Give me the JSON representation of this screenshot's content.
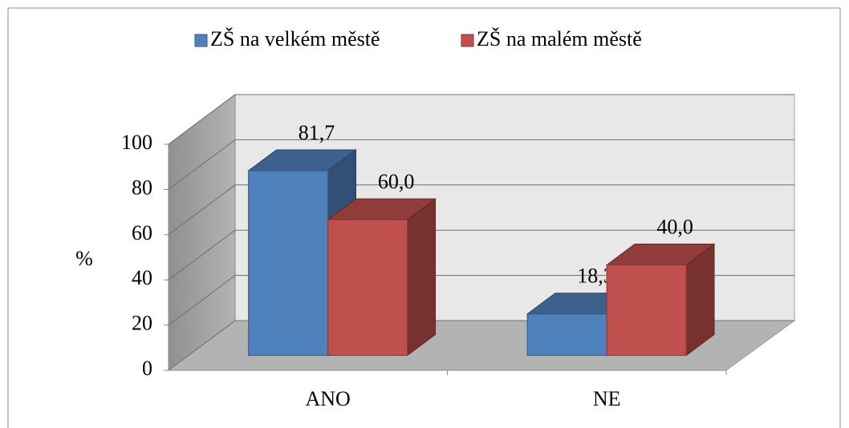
{
  "chart_data": {
    "type": "bar3d",
    "ylabel": "%",
    "categories": [
      "ANO",
      "NE"
    ],
    "series": [
      {
        "name": "ZŠ na velkém městě",
        "color": "#4f81bd",
        "values": [
          81.7,
          18.3
        ],
        "value_labels": [
          "81,7",
          "18,3"
        ]
      },
      {
        "name": "ZŠ na malém městě",
        "color": "#c0504d",
        "values": [
          60.0,
          40.0
        ],
        "value_labels": [
          "60,0",
          "40,0"
        ]
      }
    ],
    "ylim": [
      0,
      100
    ],
    "yticks": [
      0,
      20,
      40,
      60,
      80,
      100
    ],
    "grid": true,
    "legend": "top"
  }
}
